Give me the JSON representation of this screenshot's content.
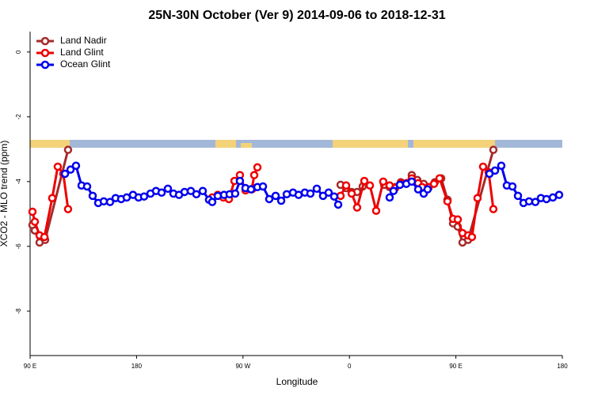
{
  "chart_data": {
    "type": "line",
    "title": "25N-30N October (Ver 9)   2014-09-06 to 2018-12-31",
    "x_label": "Longitude",
    "y_label": "XCO2 - MLO trend (ppm)",
    "xlim": [
      90,
      540
    ],
    "ylim": [
      -9.37,
      0.63
    ],
    "xticks": [
      {
        "value": 90,
        "label": "90 E"
      },
      {
        "value": 180,
        "label": "180"
      },
      {
        "value": 270,
        "label": "90 W"
      },
      {
        "value": 360,
        "label": "0"
      },
      {
        "value": 450,
        "label": "90 E"
      },
      {
        "value": 540,
        "label": "180"
      }
    ],
    "yticks": [
      0,
      -2,
      -4,
      -6,
      -8
    ],
    "legend": "top-left",
    "series": [
      {
        "name": "Land Nadir",
        "color": "#a52a2a",
        "x": [
          92.0,
          94.0,
          98.0,
          102.7,
          122.1,
          null,
          278.8,
          null,
          352.5,
          357.2,
          361.9,
          366.5,
          371.2,
          null,
          389.3,
          394.0,
          398.7,
          403.4,
          408.1,
          412.7,
          417.4,
          422.8,
          426.8,
          432.2,
          437.6,
          442.9,
          447.6,
          451.6,
          455.6,
          460.3,
          481.7
        ],
        "values": [
          -5.34,
          -5.51,
          -5.88,
          -5.8,
          -3.02,
          null,
          -4.2,
          null,
          -4.1,
          -4.2,
          -4.32,
          -4.32,
          -4.15,
          null,
          -4.1,
          -4.17,
          -4.17,
          -4.02,
          -4.05,
          -3.8,
          -3.95,
          -4.07,
          -4.2,
          -4.02,
          -3.9,
          -4.56,
          -5.29,
          -5.39,
          -5.88,
          -5.8,
          -3.02
        ]
      },
      {
        "name": "Land Glint",
        "color": "#ee0000",
        "x": [
          92.0,
          94.0,
          98.0,
          102.1,
          108.7,
          113.4,
          118.1,
          122.1,
          null,
          244.0,
          248.7,
          253.4,
          258.1,
          262.8,
          267.4,
          272.1,
          277.5,
          279.5,
          282.2,
          null,
          352.5,
          357.2,
          361.9,
          366.5,
          372.6,
          377.3,
          382.6,
          388.6,
          394.0,
          398.7,
          403.4,
          408.1,
          412.7,
          418.1,
          421.4,
          426.8,
          431.5,
          436.2,
          442.9,
          447.6,
          451.6,
          455.6,
          460.3,
          463.6,
          468.3,
          473.0,
          477.7,
          481.7
        ],
        "values": [
          -4.93,
          -5.24,
          -5.66,
          -5.71,
          -4.51,
          -3.54,
          -3.76,
          -4.85,
          null,
          -4.49,
          -4.41,
          -4.49,
          -4.54,
          -3.98,
          -3.8,
          -4.27,
          -4.24,
          -3.8,
          -3.56,
          null,
          -4.44,
          -4.12,
          -4.37,
          -4.8,
          -3.98,
          -4.12,
          -4.9,
          -4.0,
          -4.12,
          -4.2,
          -4.05,
          -4.05,
          -3.9,
          -4.05,
          -4.17,
          -4.17,
          -4.07,
          -3.9,
          -4.61,
          -5.15,
          -5.17,
          -5.59,
          -5.66,
          -5.71,
          -4.51,
          -3.54,
          -3.71,
          -4.85
        ]
      },
      {
        "name": "Ocean Glint",
        "color": "#0000ee",
        "x": [
          119.5,
          124.2,
          128.8,
          133.5,
          138.2,
          142.9,
          147.6,
          152.3,
          157.6,
          162.3,
          167.0,
          171.7,
          177.0,
          181.7,
          186.4,
          191.8,
          196.5,
          201.2,
          206.5,
          211.2,
          215.9,
          220.6,
          225.9,
          230.6,
          236.0,
          241.3,
          244.0,
          248.7,
          254.0,
          258.7,
          263.4,
          267.4,
          272.1,
          276.8,
          282.2,
          286.9,
          292.2,
          297.6,
          302.3,
          307.0,
          312.3,
          317.0,
          322.3,
          327.0,
          332.4,
          337.7,
          342.4,
          347.1,
          350.5,
          null,
          394.0,
          397.3,
          402.7,
          408.1,
          412.7,
          418.1,
          422.8,
          426.1,
          null,
          478.4,
          483.1,
          488.4,
          493.1,
          497.8,
          502.5,
          507.2,
          511.9,
          517.2,
          521.9,
          526.6,
          532.0,
          537.3
        ],
        "values": [
          -3.76,
          -3.63,
          -3.51,
          -4.12,
          -4.15,
          -4.44,
          -4.66,
          -4.61,
          -4.63,
          -4.51,
          -4.54,
          -4.49,
          -4.41,
          -4.49,
          -4.46,
          -4.37,
          -4.29,
          -4.34,
          -4.22,
          -4.37,
          -4.41,
          -4.32,
          -4.29,
          -4.39,
          -4.29,
          -4.56,
          -4.63,
          -4.44,
          -4.41,
          -4.39,
          -4.37,
          -3.98,
          -4.2,
          -4.24,
          -4.17,
          -4.15,
          -4.54,
          -4.44,
          -4.59,
          -4.39,
          -4.34,
          -4.41,
          -4.34,
          -4.37,
          -4.22,
          -4.44,
          -4.34,
          -4.46,
          -4.71,
          null,
          -4.49,
          -4.29,
          -4.1,
          -4.07,
          -4.0,
          -4.24,
          -4.37,
          -4.24,
          null,
          -3.76,
          -3.66,
          -3.51,
          -4.12,
          -4.15,
          -4.44,
          -4.66,
          -4.61,
          -4.63,
          -4.51,
          -4.54,
          -4.49,
          -4.41
        ]
      }
    ]
  }
}
